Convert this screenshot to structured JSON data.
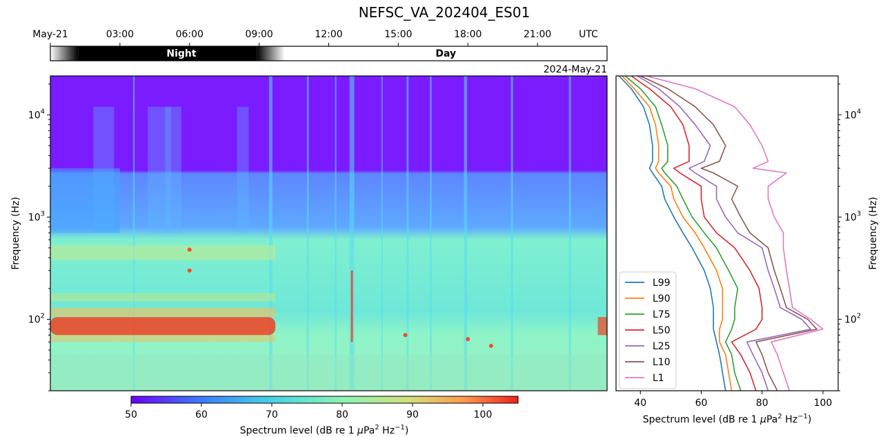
{
  "title": "NEFSC_VA_202404_ES01",
  "time_axis": {
    "ticks": [
      "May-21",
      "03:00",
      "06:00",
      "09:00",
      "12:00",
      "15:00",
      "18:00",
      "21:00"
    ],
    "tick_hours": [
      0,
      3,
      6,
      9,
      12,
      15,
      18,
      21
    ],
    "unit_label": "UTC"
  },
  "daynight": {
    "night_label": "Night",
    "day_label": "Day",
    "night_core_start_hr": 1.2,
    "night_core_end_hr": 8.9,
    "night_fade_hr": 1.2
  },
  "date_label": "2024-May-21",
  "spectrogram": {
    "ylabel": "Frequency (Hz)",
    "yticks": [
      {
        "base": "10",
        "exp": "2",
        "value": 100
      },
      {
        "base": "10",
        "exp": "3",
        "value": 1000
      },
      {
        "base": "10",
        "exp": "4",
        "value": 10000
      }
    ],
    "ylim": [
      20,
      24000
    ],
    "xlim_hr": [
      0,
      24
    ]
  },
  "colorbar": {
    "label_pre": "Spectrum level (dB re 1 ",
    "label_mu": "μ",
    "label_mid": "Pa",
    "label_sup1": "2",
    "label_hz": " Hz",
    "label_sup2": "−1",
    "label_end": ")",
    "ticks": [
      "50",
      "60",
      "70",
      "80",
      "90",
      "100"
    ],
    "tick_values": [
      50,
      60,
      70,
      80,
      90,
      100
    ],
    "range": [
      50,
      105
    ]
  },
  "chart_data": {
    "type": "line",
    "xlabel": "Spectrum level (dB re 1 μPa² Hz⁻¹)",
    "ylabel": "Frequency (Hz)",
    "xticks": [
      "40",
      "60",
      "80",
      "100"
    ],
    "xtick_values": [
      40,
      60,
      80,
      100
    ],
    "xlim": [
      32,
      105
    ],
    "ylim": [
      20,
      24000
    ],
    "yscale": "log",
    "frequencies": [
      20,
      30,
      45,
      60,
      80,
      100,
      130,
      200,
      300,
      500,
      700,
      1000,
      1500,
      2000,
      2700,
      3000,
      3500,
      5000,
      8000,
      12000,
      18000,
      24000
    ],
    "series": [
      {
        "name": "L99",
        "color": "#1f77b4",
        "values": [
          68,
          67,
          66,
          65,
          64,
          64,
          64,
          63,
          61,
          57,
          54,
          51,
          48,
          47,
          44,
          43,
          44,
          44,
          43,
          41,
          37,
          33
        ]
      },
      {
        "name": "L90",
        "color": "#ff7f0e",
        "values": [
          70,
          69,
          68,
          66,
          66,
          67,
          67,
          67,
          65,
          61,
          58,
          54,
          51,
          50,
          46,
          45,
          46,
          46,
          45,
          43,
          38,
          34
        ]
      },
      {
        "name": "L75",
        "color": "#2ca02c",
        "values": [
          73,
          71,
          70,
          68,
          70,
          71,
          71,
          72,
          69,
          65,
          61,
          57,
          54,
          52,
          48,
          47,
          49,
          49,
          47,
          45,
          40,
          35
        ]
      },
      {
        "name": "L50",
        "color": "#d62728",
        "values": [
          78,
          76,
          73,
          70,
          78,
          80,
          80,
          79,
          76,
          71,
          65,
          61,
          60,
          60,
          53,
          51,
          56,
          56,
          54,
          50,
          43,
          37
        ]
      },
      {
        "name": "L25",
        "color": "#9467bd",
        "values": [
          82,
          80,
          77,
          75,
          96,
          93,
          86,
          84,
          82,
          80,
          72,
          68,
          65,
          65,
          58,
          56,
          61,
          63,
          58,
          53,
          46,
          39
        ]
      },
      {
        "name": "L10",
        "color": "#8c564b",
        "values": [
          85,
          82,
          80,
          78,
          98,
          95,
          88,
          86,
          84,
          82,
          76,
          73,
          70,
          72,
          64,
          60,
          66,
          68,
          64,
          58,
          49,
          40
        ]
      },
      {
        "name": "L1",
        "color": "#e377c2",
        "values": [
          89,
          87,
          85,
          83,
          100,
          96,
          90,
          89,
          88,
          87,
          87,
          84,
          82,
          82,
          88,
          77,
          82,
          80,
          76,
          71,
          58,
          42
        ]
      }
    ]
  },
  "right_ylabel": "Frequency (Hz)"
}
